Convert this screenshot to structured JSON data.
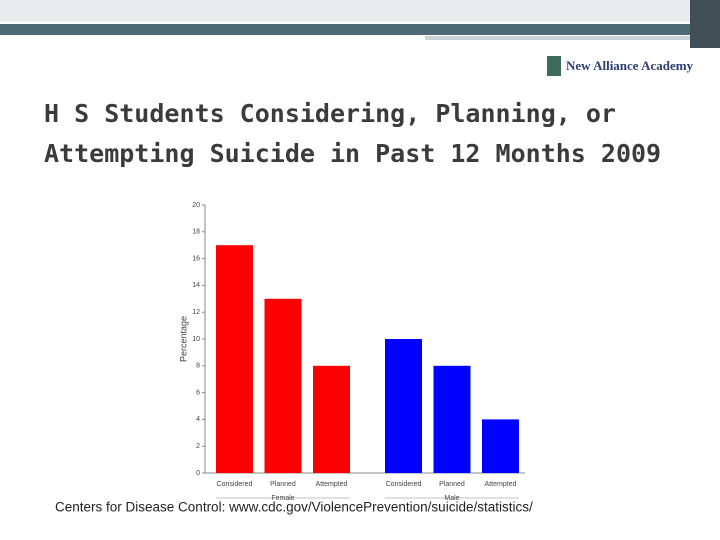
{
  "logo": "New Alliance Academy",
  "title_lines": [
    "H S Students Considering, Planning, or",
    "Attempting Suicide in Past 12 Months 2009"
  ],
  "source": "Centers for Disease Control: www.cdc.gov/ViolencePrevention/suicide/statistics/",
  "chart_data": {
    "type": "bar",
    "y_label": "Percentage",
    "groups": [
      {
        "name": "Female",
        "color": "#ff0000",
        "categories": [
          "Considered",
          "Planned",
          "Attempted"
        ],
        "values": [
          17,
          13,
          8
        ]
      },
      {
        "name": "Male",
        "color": "#0000ff",
        "categories": [
          "Considered",
          "Planned",
          "Attempted"
        ],
        "values": [
          10,
          8,
          4
        ]
      }
    ],
    "ylim": [
      0,
      20
    ],
    "yticks": [
      0,
      2,
      4,
      6,
      8,
      10,
      12,
      14,
      16,
      18,
      20
    ]
  }
}
